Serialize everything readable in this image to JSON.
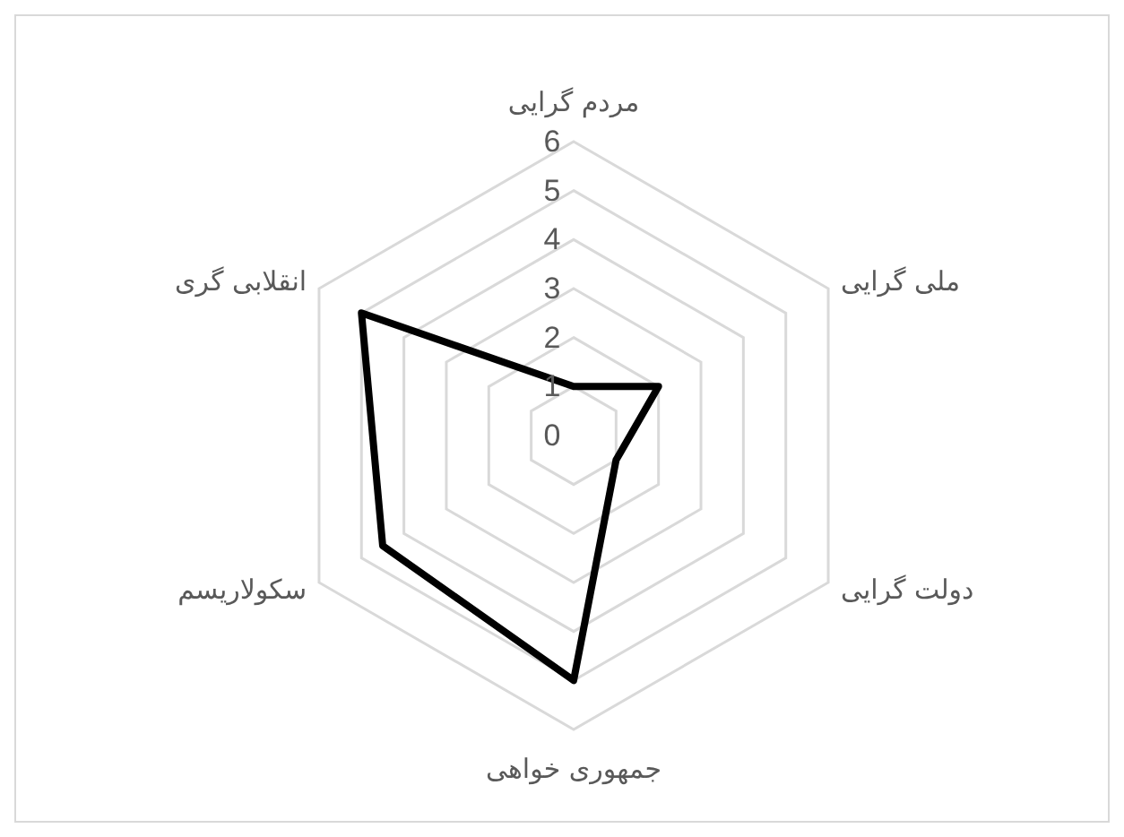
{
  "chart_data": {
    "type": "radar",
    "categories": [
      "مردم گرایی",
      "ملی گرایی",
      "دولت گرایی",
      "جمهوری خواهی",
      "سکولاریسم",
      "انقلابی گری"
    ],
    "series": [
      {
        "color": "#000000",
        "values": [
          1,
          2,
          1,
          5,
          4.5,
          5
        ]
      }
    ],
    "ylim": [
      0,
      6
    ],
    "yticks": [
      0,
      1,
      2,
      3,
      4,
      5,
      6
    ],
    "grid": true
  }
}
